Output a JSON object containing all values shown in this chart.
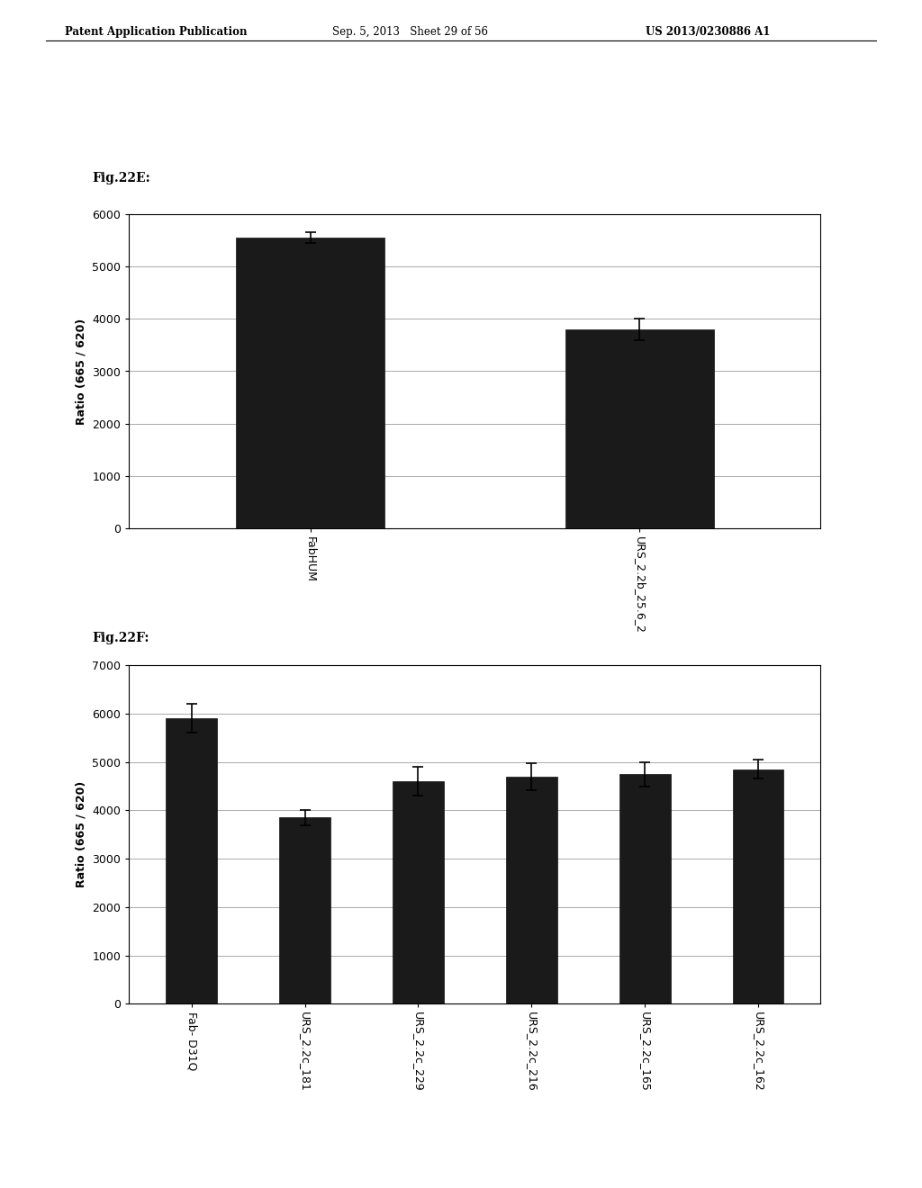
{
  "header_left": "Patent Application Publication",
  "header_mid": "Sep. 5, 2013   Sheet 29 of 56",
  "header_right": "US 2013/0230886 A1",
  "fig_e_label": "Fig.22E:",
  "fig_f_label": "Fig.22F:",
  "fig_e": {
    "categories": [
      "FabHUM",
      "URS_2.2b_25.6_2"
    ],
    "values": [
      5550,
      3800
    ],
    "errors": [
      100,
      200
    ],
    "ylabel": "Ratio (665 / 620)",
    "ylim": [
      0,
      6000
    ],
    "yticks": [
      0,
      1000,
      2000,
      3000,
      4000,
      5000,
      6000
    ],
    "bar_color": "#1a1a1a",
    "bar_width": 0.45
  },
  "fig_f": {
    "categories": [
      "Fab- D31Q",
      "URS_2.2c_181",
      "URS_2.2c_229",
      "URS_2.2c_216",
      "URS_2.2c_165",
      "URS_2.2c_162"
    ],
    "values": [
      5900,
      3850,
      4600,
      4700,
      4750,
      4850
    ],
    "errors": [
      300,
      150,
      300,
      280,
      250,
      200
    ],
    "ylabel": "Ratio (665 / 620)",
    "ylim": [
      0,
      7000
    ],
    "yticks": [
      0,
      1000,
      2000,
      3000,
      4000,
      5000,
      6000,
      7000
    ],
    "bar_color": "#1a1a1a",
    "bar_width": 0.45
  },
  "background_color": "#ffffff",
  "page_bg": "#ffffff"
}
